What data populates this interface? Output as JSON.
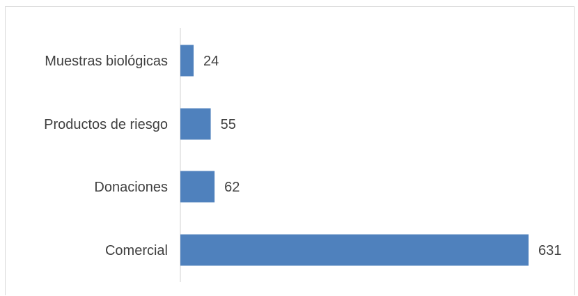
{
  "chart_data": {
    "type": "bar",
    "orientation": "horizontal",
    "categories": [
      "Muestras biológicas",
      "Productos de riesgo",
      "Donaciones",
      "Comercial"
    ],
    "values": [
      24,
      55,
      62,
      631
    ],
    "title": "",
    "xlabel": "",
    "ylabel": "",
    "xlim": [
      0,
      631
    ],
    "grid": false,
    "legend": "none",
    "data_labels": true,
    "bar_color": "#4f81bd",
    "text_color": "#404040",
    "axis_color": "#d9d9d9"
  }
}
